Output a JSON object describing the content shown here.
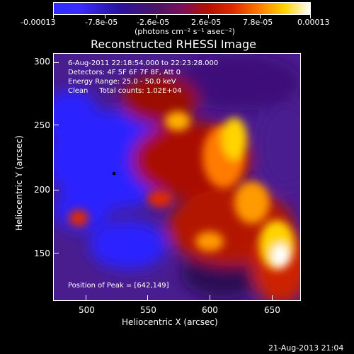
{
  "colorbar": {
    "ticks": [
      "-0.00013",
      "-7.8e-05",
      "-2.6e-05",
      "2.6e-05",
      "7.8e-05",
      "0.00013"
    ],
    "units": "(photons cm⁻² s⁻¹ asec⁻²)"
  },
  "title": "Reconstructed RHESSI Image",
  "info": {
    "time": "6-Aug-2011 22:18:54.000 to 22:23:28.000",
    "detectors": "Detectors: 4F 5F 6F 7F 8F, Att 0",
    "energy": "Energy Range: 25.0 - 50.0 keV",
    "clean": "Clean     Total counts: 1.02E+04",
    "peak": "Position of Peak = [642,149]"
  },
  "x_axis": {
    "label": "Heliocentric X (arcsec)",
    "ticks": [
      "500",
      "550",
      "600",
      "650"
    ]
  },
  "y_axis": {
    "label": "Heliocentric Y (arcsec)",
    "ticks": [
      "300",
      "250",
      "200",
      "150"
    ]
  },
  "footer": {
    "timestamp": "21-Aug-2013 21:04"
  }
}
